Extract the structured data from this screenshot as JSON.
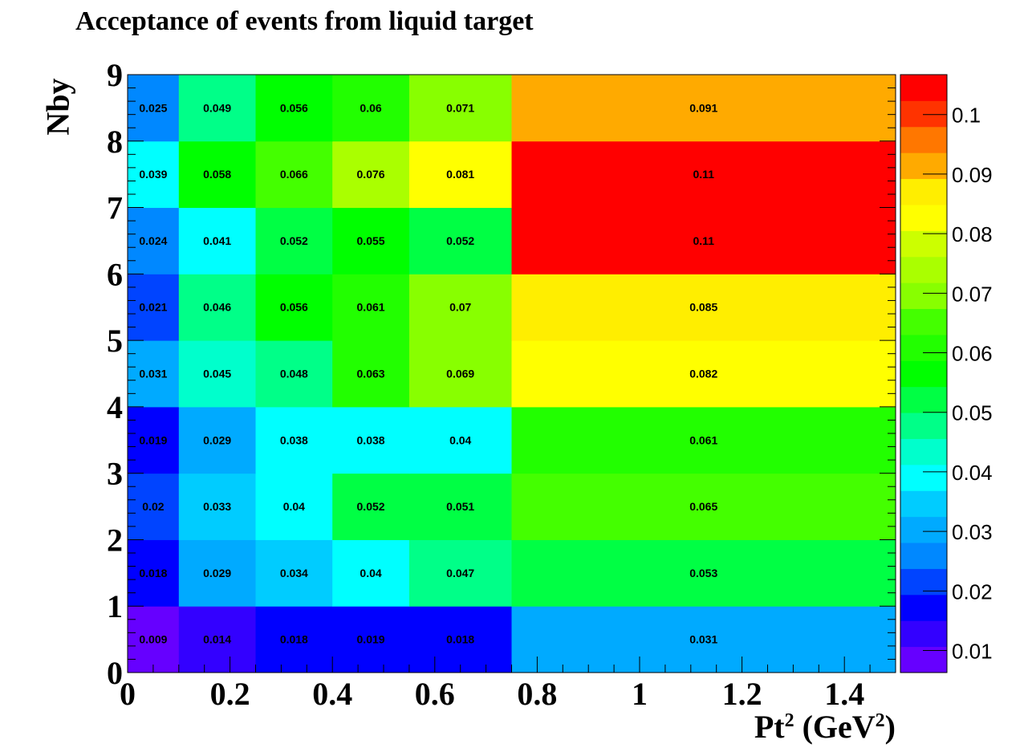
{
  "chart_data": {
    "type": "heatmap",
    "title": "Acceptance of events from liquid target",
    "ylabel": "Nby",
    "xlabel": {
      "base": "Pt",
      "sup1": "2",
      "unit_open": " (GeV",
      "sup2": "2",
      "unit_close": ")"
    },
    "x_edges": [
      0,
      0.1,
      0.25,
      0.4,
      0.55,
      0.75,
      1.5
    ],
    "y_edges": [
      0,
      1,
      2,
      3,
      4,
      5,
      6,
      7,
      8,
      9
    ],
    "xlim": [
      0,
      1.5
    ],
    "ylim": [
      0,
      9
    ],
    "x_ticks": [
      0,
      0.2,
      0.4,
      0.6,
      0.8,
      1,
      1.2,
      1.4
    ],
    "x_tick_labels": [
      "0",
      "0.2",
      "0.4",
      "0.6",
      "0.8",
      "1",
      "1.2",
      "1.4"
    ],
    "y_ticks": [
      0,
      1,
      2,
      3,
      4,
      5,
      6,
      7,
      8,
      9
    ],
    "y_tick_labels": [
      "0",
      "1",
      "2",
      "3",
      "4",
      "5",
      "6",
      "7",
      "8",
      "9"
    ],
    "values": [
      [
        0.009,
        0.014,
        0.018,
        0.019,
        0.018,
        0.031
      ],
      [
        0.018,
        0.029,
        0.034,
        0.04,
        0.047,
        0.053
      ],
      [
        0.02,
        0.033,
        0.04,
        0.052,
        0.051,
        0.065
      ],
      [
        0.019,
        0.029,
        0.038,
        0.038,
        0.04,
        0.061
      ],
      [
        0.031,
        0.045,
        0.048,
        0.063,
        0.069,
        0.082
      ],
      [
        0.021,
        0.046,
        0.056,
        0.061,
        0.07,
        0.085
      ],
      [
        0.024,
        0.041,
        0.052,
        0.055,
        0.052,
        0.11
      ],
      [
        0.039,
        0.058,
        0.066,
        0.076,
        0.081,
        0.11
      ],
      [
        0.025,
        0.049,
        0.056,
        0.06,
        0.071,
        0.091
      ]
    ],
    "value_labels": [
      [
        "0.009",
        "0.014",
        "0.018",
        "0.019",
        "0.018",
        "0.031"
      ],
      [
        "0.018",
        "0.029",
        "0.034",
        "0.04",
        "0.047",
        "0.053"
      ],
      [
        "0.02",
        "0.033",
        "0.04",
        "0.052",
        "0.051",
        "0.065"
      ],
      [
        "0.019",
        "0.029",
        "0.038",
        "0.038",
        "0.04",
        "0.061"
      ],
      [
        "0.031",
        "0.045",
        "0.048",
        "0.063",
        "0.069",
        "0.082"
      ],
      [
        "0.021",
        "0.046",
        "0.056",
        "0.061",
        "0.07",
        "0.085"
      ],
      [
        "0.024",
        "0.041",
        "0.052",
        "0.055",
        "0.052",
        "0.11"
      ],
      [
        "0.039",
        "0.058",
        "0.066",
        "0.076",
        "0.081",
        "0.11"
      ],
      [
        "0.025",
        "0.049",
        "0.056",
        "0.06",
        "0.071",
        "0.091"
      ]
    ],
    "colorbar": {
      "zmin": 0.0063,
      "zmax": 0.1067,
      "ticks": [
        0.01,
        0.02,
        0.03,
        0.04,
        0.05,
        0.06,
        0.07,
        0.08,
        0.09,
        0.1
      ],
      "tick_labels": [
        "0.01",
        "0.02",
        "0.03",
        "0.04",
        "0.05",
        "0.06",
        "0.07",
        "0.08",
        "0.09",
        "0.1"
      ],
      "colors": [
        "#6600ff",
        "#3300ff",
        "#0000ff",
        "#0044ff",
        "#0088ff",
        "#00aaff",
        "#00ccff",
        "#00ffff",
        "#00ffcc",
        "#00ff88",
        "#00ff44",
        "#00ff00",
        "#22ff00",
        "#44ff00",
        "#88ff00",
        "#aaff00",
        "#ccff00",
        "#ffff00",
        "#ffee00",
        "#ffaa00",
        "#ff7700",
        "#ff3300",
        "#ff0000"
      ]
    },
    "grid": false,
    "legend": "colorbar-right"
  }
}
